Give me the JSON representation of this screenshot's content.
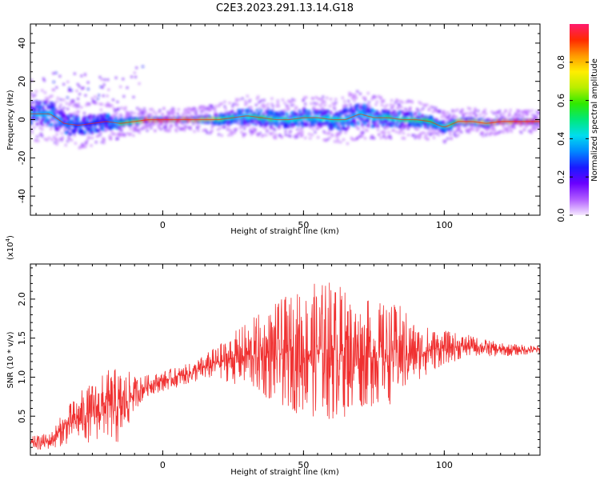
{
  "figure": {
    "title": "C2E3.2023.291.13.14.G18"
  },
  "chart_data": [
    {
      "type": "heatmap",
      "xlabel": "Height of straight line (km)",
      "ylabel": "Frequency (Hz)",
      "xlim": [
        -47,
        134
      ],
      "ylim": [
        -50,
        50
      ],
      "x_ticks": [
        0,
        50,
        100
      ],
      "y_ticks": [
        -40,
        -20,
        0,
        20,
        40
      ],
      "colorbar": {
        "label": "Normalized spectral amplitude",
        "range": [
          0,
          1
        ],
        "ticks": [
          0.0,
          0.2,
          0.4,
          0.6,
          0.8
        ],
        "colors": [
          "#f6e9ff",
          "#b05cff",
          "#6a00ff",
          "#1a1aff",
          "#0088ff",
          "#00ddee",
          "#00e87a",
          "#2eea00",
          "#b8ee00",
          "#ffee00",
          "#ff9a00",
          "#ff2a00",
          "#ff1a6e"
        ]
      },
      "ridge": {
        "x": [
          -47,
          -40,
          -35,
          -30,
          -25,
          -20,
          -15,
          -10,
          -5,
          0,
          5,
          10,
          15,
          20,
          25,
          30,
          35,
          40,
          45,
          50,
          55,
          60,
          65,
          70,
          75,
          80,
          85,
          90,
          95,
          98,
          100,
          105,
          110,
          115,
          120,
          125,
          134
        ],
        "freq": [
          3,
          3,
          -2,
          -3,
          -2,
          -1,
          -2,
          -1,
          0,
          0,
          0,
          0,
          0,
          0,
          1,
          2,
          1,
          0,
          0,
          1,
          1,
          0,
          0,
          3,
          1,
          1,
          0,
          0,
          -1,
          -3,
          -4,
          -1,
          -1,
          -2,
          -1,
          -1,
          -1
        ],
        "spread": [
          8,
          8,
          7,
          6,
          6,
          5,
          3,
          2,
          1,
          1,
          1,
          1,
          2,
          3,
          4,
          5,
          5,
          5,
          5,
          5,
          5,
          6,
          7,
          7,
          6,
          5,
          5,
          4,
          4,
          3,
          3,
          2,
          2,
          2,
          1,
          1,
          1
        ],
        "amplitude": [
          0.35,
          0.35,
          0.3,
          0.3,
          0.25,
          0.2,
          0.5,
          0.65,
          0.85,
          0.95,
          0.9,
          0.85,
          0.75,
          0.55,
          0.45,
          0.45,
          0.5,
          0.5,
          0.45,
          0.45,
          0.45,
          0.45,
          0.4,
          0.35,
          0.45,
          0.5,
          0.5,
          0.55,
          0.55,
          0.4,
          0.5,
          0.7,
          0.75,
          0.75,
          0.85,
          0.9,
          0.9
        ]
      }
    },
    {
      "type": "line",
      "xlabel": "Height of straight line (km)",
      "ylabel": "SNR (10 * v/v)",
      "scale_label": "(x10",
      "scale_exponent": "4",
      "scale_suffix": ")",
      "xlim": [
        -47,
        134
      ],
      "ylim": [
        0.0,
        2.45
      ],
      "x_ticks": [
        0,
        50,
        100
      ],
      "y_ticks": [
        0.5,
        1.0,
        1.5,
        2.0
      ],
      "color": "#f03030",
      "envelope": {
        "x": [
          -47,
          -40,
          -35,
          -30,
          -25,
          -20,
          -15,
          -10,
          -5,
          0,
          10,
          20,
          30,
          40,
          50,
          55,
          60,
          65,
          70,
          80,
          85,
          90,
          100,
          110,
          120,
          134
        ],
        "center": [
          0.15,
          0.18,
          0.35,
          0.48,
          0.55,
          0.65,
          0.6,
          0.8,
          0.9,
          0.95,
          1.05,
          1.2,
          1.28,
          1.3,
          1.33,
          1.35,
          1.35,
          1.32,
          1.3,
          1.3,
          1.32,
          1.32,
          1.38,
          1.4,
          1.35,
          1.35
        ],
        "amplitude": [
          0.08,
          0.1,
          0.2,
          0.3,
          0.35,
          0.4,
          0.5,
          0.2,
          0.12,
          0.12,
          0.12,
          0.2,
          0.4,
          0.6,
          0.75,
          0.8,
          0.85,
          0.75,
          0.65,
          0.6,
          0.55,
          0.35,
          0.2,
          0.12,
          0.08,
          0.05
        ]
      }
    }
  ]
}
